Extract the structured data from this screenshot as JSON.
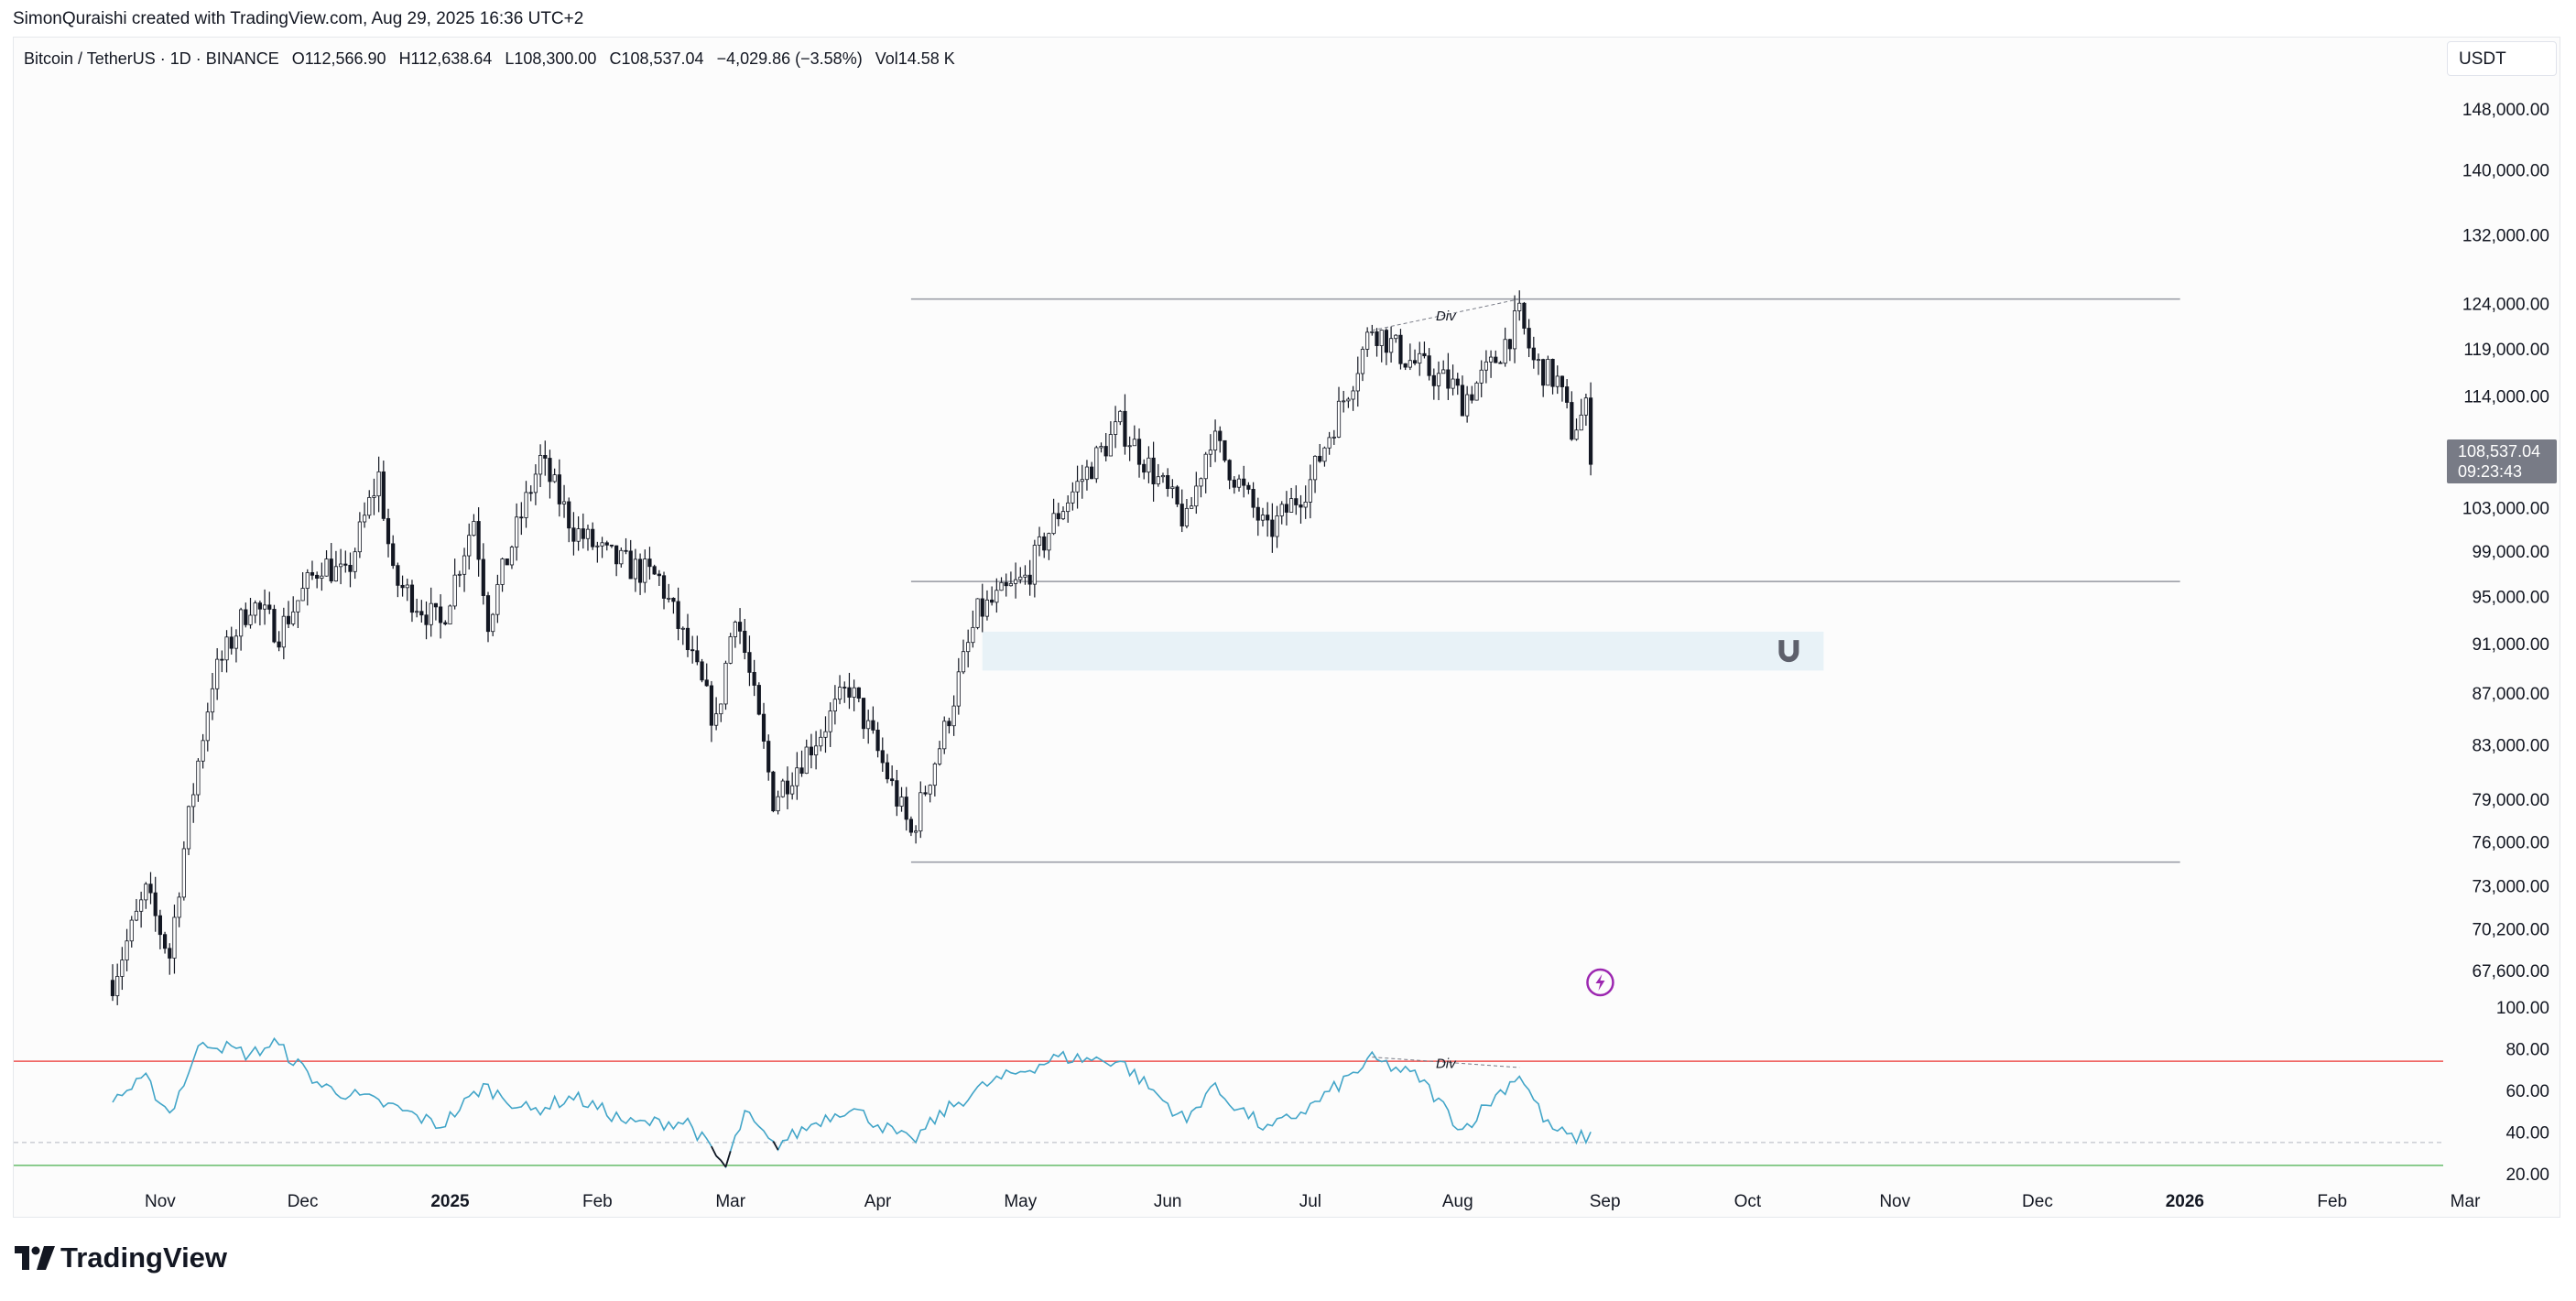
{
  "watermark": "SimonQuraishi created with TradingView.com, Aug 29, 2025 16:36 UTC+2",
  "symbol": {
    "name": "Bitcoin / TetherUS · 1D · BINANCE",
    "open": "O112,566.90",
    "high": "H112,638.64",
    "low": "L108,300.00",
    "close": "C108,537.04",
    "change": "−4,029.86 (−3.58%)",
    "volume": "Vol14.58 K"
  },
  "currency_button": "USDT",
  "last_price": {
    "price": "108,537.04",
    "countdown": "09:23:43"
  },
  "brand": "TradingView",
  "colors": {
    "candle": "#131722",
    "rsi_line": "#42a5c8",
    "rsi_oversold": "#131722",
    "overbought_line": "#ef5350",
    "oversold_line": "#66bb6a",
    "zone": "#e8f2f7",
    "alert_icon": "#9c27b0",
    "level_line": "#9598a1"
  },
  "icons": [
    "magnet-icon",
    "lightning-alert-icon",
    "tradingview-logo-icon"
  ],
  "chart_data": [
    {
      "type": "candlestick",
      "title": "Bitcoin / TetherUS · 1D · BINANCE",
      "scale": "log",
      "ylim": [
        64500,
        160000
      ],
      "x_range": [
        "2024-10-22",
        "2026-03-31"
      ],
      "data_range": [
        "2024-10-22",
        "2025-08-29"
      ],
      "price_ticks": [
        "148,000.00",
        "140,000.00",
        "132,000.00",
        "124,000.00",
        "119,000.00",
        "114,000.00",
        "103,000.00",
        "99,000.00",
        "95,000.00",
        "91,000.00",
        "87,000.00",
        "83,000.00",
        "79,000.00",
        "76,000.00",
        "73,000.00",
        "70,200.00",
        "67,600.00"
      ],
      "time_ticks": [
        {
          "label": "Nov",
          "bold": false
        },
        {
          "label": "Dec",
          "bold": false
        },
        {
          "label": "2025",
          "bold": true
        },
        {
          "label": "Feb",
          "bold": false
        },
        {
          "label": "Mar",
          "bold": false
        },
        {
          "label": "Apr",
          "bold": false
        },
        {
          "label": "May",
          "bold": false
        },
        {
          "label": "Jun",
          "bold": false
        },
        {
          "label": "Jul",
          "bold": false
        },
        {
          "label": "Aug",
          "bold": false
        },
        {
          "label": "Sep",
          "bold": false
        },
        {
          "label": "Oct",
          "bold": false
        },
        {
          "label": "Nov",
          "bold": false
        },
        {
          "label": "Dec",
          "bold": false
        },
        {
          "label": "2026",
          "bold": true
        },
        {
          "label": "Feb",
          "bold": false
        },
        {
          "label": "Mar",
          "bold": false
        }
      ],
      "anchors": [
        [
          "2024-10-22",
          67000
        ],
        [
          "2024-10-29",
          72500
        ],
        [
          "2024-11-03",
          68500
        ],
        [
          "2024-11-06",
          75500
        ],
        [
          "2024-11-12",
          88000
        ],
        [
          "2024-11-20",
          94500
        ],
        [
          "2024-11-26",
          92000
        ],
        [
          "2024-12-05",
          98000
        ],
        [
          "2024-12-10",
          96500
        ],
        [
          "2024-12-17",
          106000
        ],
        [
          "2024-12-20",
          96500
        ],
        [
          "2024-12-30",
          92500
        ],
        [
          "2025-01-06",
          102000
        ],
        [
          "2025-01-09",
          93000
        ],
        [
          "2025-01-20",
          107500
        ],
        [
          "2025-01-27",
          101000
        ],
        [
          "2025-02-03",
          98500
        ],
        [
          "2025-02-14",
          96500
        ],
        [
          "2025-02-26",
          84500
        ],
        [
          "2025-03-02",
          94000
        ],
        [
          "2025-03-10",
          79000
        ],
        [
          "2025-03-20",
          84000
        ],
        [
          "2025-03-26",
          87500
        ],
        [
          "2025-04-08",
          76500
        ],
        [
          "2025-04-15",
          84000
        ],
        [
          "2025-04-22",
          93500
        ],
        [
          "2025-05-02",
          96500
        ],
        [
          "2025-05-09",
          102500
        ],
        [
          "2025-05-22",
          111000
        ],
        [
          "2025-06-05",
          101500
        ],
        [
          "2025-06-10",
          110000
        ],
        [
          "2025-06-22",
          100500
        ],
        [
          "2025-07-01",
          105500
        ],
        [
          "2025-07-10",
          116000
        ],
        [
          "2025-07-14",
          121500
        ],
        [
          "2025-07-21",
          118000
        ],
        [
          "2025-07-31",
          115000
        ],
        [
          "2025-08-02",
          113500
        ],
        [
          "2025-08-08",
          117000
        ],
        [
          "2025-08-14",
          122500
        ],
        [
          "2025-08-17",
          117500
        ],
        [
          "2025-08-22",
          115500
        ],
        [
          "2025-08-25",
          110500
        ],
        [
          "2025-08-28",
          112500
        ],
        [
          "2025-08-29",
          108537.04
        ]
      ],
      "levels": [
        {
          "price": 124500,
          "from": "2025-04-08",
          "to": "2025-12-31"
        },
        {
          "price": 96300,
          "from": "2025-04-08",
          "to": "2025-12-31"
        },
        {
          "price": 74600,
          "from": "2025-04-08",
          "to": "2025-12-31"
        }
      ],
      "zone": {
        "top": 92000,
        "bottom": 88800,
        "from": "2025-04-23",
        "to": "2025-10-17"
      },
      "annotations": [
        {
          "text": "Div",
          "from": "2025-07-14",
          "to": "2025-08-14",
          "y_from": 121000,
          "y_to": 124500
        }
      ]
    },
    {
      "type": "line",
      "title": "",
      "ylim": [
        20,
        100
      ],
      "y_ticks": [
        "100.00",
        "80.00",
        "60.00",
        "40.00",
        "20.00"
      ],
      "levels": {
        "overbought": 74,
        "oversold": 24,
        "mid_dashed": 35
      },
      "anchors": [
        [
          "2024-10-22",
          56
        ],
        [
          "2024-10-29",
          65
        ],
        [
          "2024-11-03",
          49
        ],
        [
          "2024-11-10",
          84
        ],
        [
          "2024-11-20",
          77
        ],
        [
          "2024-11-25",
          83
        ],
        [
          "2024-12-05",
          62
        ],
        [
          "2024-12-20",
          52
        ],
        [
          "2024-12-30",
          43
        ],
        [
          "2025-01-08",
          62
        ],
        [
          "2025-01-18",
          50
        ],
        [
          "2025-01-27",
          57
        ],
        [
          "2025-02-08",
          44
        ],
        [
          "2025-02-20",
          45
        ],
        [
          "2025-02-28",
          23
        ],
        [
          "2025-03-04",
          49
        ],
        [
          "2025-03-10",
          33
        ],
        [
          "2025-03-20",
          46
        ],
        [
          "2025-03-26",
          52
        ],
        [
          "2025-04-08",
          35
        ],
        [
          "2025-04-15",
          50
        ],
        [
          "2025-04-24",
          63
        ],
        [
          "2025-05-09",
          76
        ],
        [
          "2025-05-22",
          74
        ],
        [
          "2025-06-05",
          45
        ],
        [
          "2025-06-10",
          62
        ],
        [
          "2025-06-22",
          41
        ],
        [
          "2025-07-01",
          52
        ],
        [
          "2025-07-14",
          75
        ],
        [
          "2025-07-24",
          66
        ],
        [
          "2025-08-02",
          41
        ],
        [
          "2025-08-08",
          55
        ],
        [
          "2025-08-14",
          68
        ],
        [
          "2025-08-20",
          43
        ],
        [
          "2025-08-25",
          37
        ],
        [
          "2025-08-29",
          38
        ]
      ],
      "annotations": [
        {
          "text": "Div",
          "from": "2025-07-14",
          "to": "2025-08-14",
          "y_from": 76,
          "y_to": 71
        }
      ]
    }
  ]
}
